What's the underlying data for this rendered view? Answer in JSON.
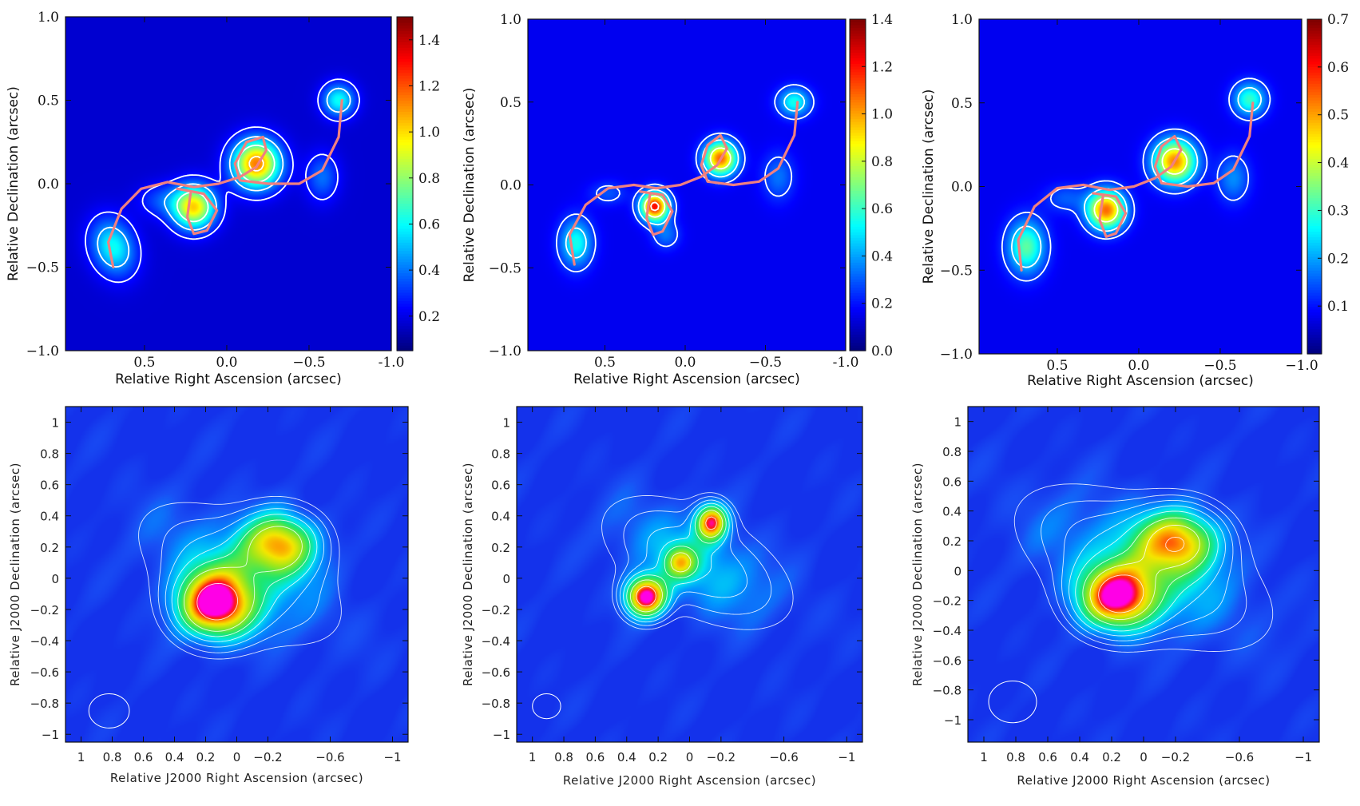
{
  "chart_data": [
    {
      "type": "heatmap",
      "panel": "top-left",
      "xlabel": "Relative Right Ascension (arcsec)",
      "ylabel": "Relative Declination (arcsec)",
      "xlim": [
        0.98,
        -1.0
      ],
      "ylim": [
        -1.0,
        1.0
      ],
      "xticks": [
        0.5,
        0.0,
        -0.5,
        -1.0
      ],
      "xtick_labels": [
        "0.5",
        "0.0",
        "−0.5",
        "-1.0"
      ],
      "yticks": [
        -1.0,
        -0.5,
        0.0,
        0.5,
        1.0
      ],
      "ytick_labels": [
        "−1.0",
        "−0.5",
        "0.0",
        "0.5",
        "1.0"
      ],
      "colormap": "jet",
      "background": "#00008b",
      "colorbar": {
        "range": [
          0.05,
          1.5
        ],
        "ticks": [
          0.2,
          0.4,
          0.6,
          0.8,
          1.0,
          1.2,
          1.4
        ],
        "tick_labels": [
          "0.2",
          "0.4",
          "0.6",
          "0.8",
          "1.0",
          "1.2",
          "1.4"
        ]
      },
      "sources": [
        {
          "x": 0.69,
          "y": -0.38,
          "sx": 0.09,
          "sy": 0.12,
          "peak": 0.5,
          "rot": -20
        },
        {
          "x": 0.2,
          "y": -0.14,
          "sx": 0.09,
          "sy": 0.09,
          "peak": 0.95,
          "rot": 0
        },
        {
          "x": -0.18,
          "y": 0.12,
          "sx": 0.1,
          "sy": 0.1,
          "peak": 1.1,
          "rot": 0
        },
        {
          "x": -0.68,
          "y": 0.5,
          "sx": 0.07,
          "sy": 0.07,
          "peak": 0.5,
          "rot": 0
        },
        {
          "x": -0.58,
          "y": 0.04,
          "sx": 0.07,
          "sy": 0.1,
          "peak": 0.25,
          "rot": 0
        },
        {
          "x": 0.4,
          "y": -0.1,
          "sx": 0.1,
          "sy": 0.07,
          "peak": 0.18,
          "rot": 0
        }
      ],
      "contour_levels": [
        0.1,
        0.3,
        0.6,
        1.0
      ],
      "curve": [
        [
          0.69,
          -0.5
        ],
        [
          0.72,
          -0.35
        ],
        [
          0.64,
          -0.15
        ],
        [
          0.52,
          -0.03
        ],
        [
          0.36,
          0.01
        ],
        [
          0.2,
          -0.02
        ],
        [
          0.05,
          0.0
        ],
        [
          -0.08,
          0.04
        ],
        [
          -0.18,
          0.1
        ],
        [
          -0.24,
          0.2
        ],
        [
          -0.22,
          0.28
        ],
        [
          -0.12,
          0.25
        ],
        [
          -0.05,
          0.12
        ],
        [
          -0.08,
          0.02
        ],
        [
          -0.25,
          0.0
        ],
        [
          -0.44,
          0.0
        ],
        [
          -0.58,
          0.08
        ],
        [
          -0.68,
          0.28
        ],
        [
          -0.7,
          0.5
        ]
      ],
      "curve_loop": [
        [
          0.3,
          -0.03
        ],
        [
          0.14,
          -0.06
        ],
        [
          0.06,
          -0.16
        ],
        [
          0.12,
          -0.28
        ],
        [
          0.2,
          -0.3
        ],
        [
          0.24,
          -0.2
        ],
        [
          0.22,
          -0.06
        ]
      ]
    },
    {
      "type": "heatmap",
      "panel": "top-middle",
      "xlabel": "Relative Right Ascension (arcsec)",
      "ylabel": "Relative Declination (arcsec)",
      "xlim": [
        0.98,
        -1.0
      ],
      "ylim": [
        -1.0,
        1.0
      ],
      "xticks": [
        0.5,
        0.0,
        -0.5,
        -1.0
      ],
      "xtick_labels": [
        "0.5",
        "0.0",
        "−0.5",
        "-1.0"
      ],
      "yticks": [
        -1.0,
        -0.5,
        0.0,
        0.5,
        1.0
      ],
      "ytick_labels": [
        "−1.0",
        "−0.5",
        "0.0",
        "0.5",
        "1.0"
      ],
      "colormap": "jet",
      "background": "#00008b",
      "colorbar": {
        "range": [
          0.0,
          1.4
        ],
        "ticks": [
          0.0,
          0.2,
          0.4,
          0.6,
          0.8,
          1.0,
          1.2,
          1.4
        ],
        "tick_labels": [
          "0.0",
          "0.2",
          "0.4",
          "0.6",
          "0.8",
          "1.0",
          "1.2",
          "1.4"
        ]
      },
      "sources": [
        {
          "x": 0.68,
          "y": -0.35,
          "sx": 0.07,
          "sy": 0.1,
          "peak": 0.45,
          "rot": 0
        },
        {
          "x": 0.19,
          "y": -0.13,
          "sx": 0.06,
          "sy": 0.06,
          "peak": 1.2,
          "rot": 0
        },
        {
          "x": -0.22,
          "y": 0.16,
          "sx": 0.07,
          "sy": 0.07,
          "peak": 1.05,
          "rot": 0
        },
        {
          "x": -0.68,
          "y": 0.5,
          "sx": 0.07,
          "sy": 0.06,
          "peak": 0.45,
          "rot": 0
        },
        {
          "x": -0.58,
          "y": 0.05,
          "sx": 0.07,
          "sy": 0.1,
          "peak": 0.2,
          "rot": 0
        },
        {
          "x": 0.48,
          "y": -0.05,
          "sx": 0.08,
          "sy": 0.05,
          "peak": 0.15,
          "rot": 0
        },
        {
          "x": 0.12,
          "y": -0.3,
          "sx": 0.06,
          "sy": 0.06,
          "peak": 0.2,
          "rot": 0
        }
      ],
      "contour_levels": [
        0.1,
        0.3,
        0.7,
        1.1
      ],
      "curve": [
        [
          0.69,
          -0.48
        ],
        [
          0.72,
          -0.3
        ],
        [
          0.62,
          -0.12
        ],
        [
          0.48,
          -0.02
        ],
        [
          0.32,
          0.0
        ],
        [
          0.18,
          -0.02
        ],
        [
          0.03,
          0.0
        ],
        [
          -0.1,
          0.05
        ],
        [
          -0.2,
          0.12
        ],
        [
          -0.26,
          0.22
        ],
        [
          -0.22,
          0.3
        ],
        [
          -0.14,
          0.24
        ],
        [
          -0.1,
          0.12
        ],
        [
          -0.14,
          0.02
        ],
        [
          -0.3,
          0.0
        ],
        [
          -0.46,
          0.02
        ],
        [
          -0.58,
          0.1
        ],
        [
          -0.68,
          0.3
        ],
        [
          -0.7,
          0.5
        ]
      ],
      "curve_loop": [
        [
          0.28,
          -0.04
        ],
        [
          0.14,
          -0.06
        ],
        [
          0.08,
          -0.16
        ],
        [
          0.14,
          -0.28
        ],
        [
          0.2,
          -0.3
        ],
        [
          0.24,
          -0.2
        ],
        [
          0.22,
          -0.06
        ]
      ]
    },
    {
      "type": "heatmap",
      "panel": "top-right",
      "xlabel": "Relative Right Ascension (arcsec)",
      "ylabel": "Relative Declination (arcsec)",
      "xlim": [
        0.98,
        -1.0
      ],
      "ylim": [
        -1.0,
        1.0
      ],
      "xticks": [
        0.5,
        0.0,
        -0.5,
        -1.0
      ],
      "xtick_labels": [
        "0.5",
        "0.0",
        "−0.5",
        "−1.0"
      ],
      "yticks": [
        -1.0,
        -0.5,
        0.0,
        0.5,
        1.0
      ],
      "ytick_labels": [
        "−1.0",
        "−0.5",
        "0.0",
        "0.5",
        "1.0"
      ],
      "colormap": "jet",
      "background": "#00008b",
      "colorbar": {
        "range": [
          0.0,
          0.7
        ],
        "ticks": [
          0.1,
          0.2,
          0.3,
          0.4,
          0.5,
          0.6,
          0.7
        ],
        "tick_labels": [
          "0.1",
          "0.2",
          "0.3",
          "0.4",
          "0.5",
          "0.6",
          "0.7"
        ]
      },
      "sources": [
        {
          "x": 0.69,
          "y": -0.36,
          "sx": 0.08,
          "sy": 0.11,
          "peak": 0.28,
          "rot": 0
        },
        {
          "x": 0.2,
          "y": -0.14,
          "sx": 0.08,
          "sy": 0.08,
          "peak": 0.52,
          "rot": 0
        },
        {
          "x": -0.22,
          "y": 0.15,
          "sx": 0.09,
          "sy": 0.09,
          "peak": 0.5,
          "rot": 0
        },
        {
          "x": -0.68,
          "y": 0.52,
          "sx": 0.07,
          "sy": 0.07,
          "peak": 0.25,
          "rot": 0
        },
        {
          "x": -0.58,
          "y": 0.05,
          "sx": 0.07,
          "sy": 0.1,
          "peak": 0.12,
          "rot": 0
        },
        {
          "x": 0.45,
          "y": -0.07,
          "sx": 0.09,
          "sy": 0.06,
          "peak": 0.08,
          "rot": 0
        }
      ],
      "contour_levels": [
        0.05,
        0.15,
        0.35,
        0.55
      ],
      "curve": [
        [
          0.72,
          -0.5
        ],
        [
          0.74,
          -0.32
        ],
        [
          0.64,
          -0.12
        ],
        [
          0.5,
          -0.01
        ],
        [
          0.34,
          0.01
        ],
        [
          0.18,
          -0.02
        ],
        [
          0.03,
          0.0
        ],
        [
          -0.1,
          0.05
        ],
        [
          -0.2,
          0.12
        ],
        [
          -0.26,
          0.22
        ],
        [
          -0.22,
          0.3
        ],
        [
          -0.14,
          0.24
        ],
        [
          -0.1,
          0.12
        ],
        [
          -0.14,
          0.02
        ],
        [
          -0.3,
          0.0
        ],
        [
          -0.46,
          0.02
        ],
        [
          -0.58,
          0.1
        ],
        [
          -0.68,
          0.3
        ],
        [
          -0.7,
          0.5
        ]
      ],
      "curve_loop": [
        [
          0.28,
          -0.04
        ],
        [
          0.14,
          -0.06
        ],
        [
          0.08,
          -0.16
        ],
        [
          0.14,
          -0.28
        ],
        [
          0.2,
          -0.3
        ],
        [
          0.24,
          -0.2
        ],
        [
          0.22,
          -0.06
        ]
      ]
    },
    {
      "type": "heatmap",
      "panel": "bottom-left",
      "xlabel": "Relative J2000 Right Ascension (arcsec)",
      "ylabel": "Relative J2000 Declination (arcsec)",
      "xlim": [
        1.1,
        -1.1
      ],
      "ylim": [
        -1.05,
        1.1
      ],
      "xticks": [
        1,
        0.8,
        0.6,
        0.4,
        0.2,
        0,
        -0.2,
        -0.6,
        -1
      ],
      "xtick_labels": [
        "1",
        "0.8",
        "0.6",
        "0.4",
        "0.2",
        "0",
        "−0.2",
        "−0.6",
        "−1"
      ],
      "yticks": [
        -1,
        -0.8,
        -0.6,
        -0.4,
        -0.2,
        0,
        0.2,
        0.4,
        0.6,
        0.8,
        1
      ],
      "ytick_labels": [
        "−1",
        "−0.8",
        "−0.6",
        "−0.4",
        "−0.2",
        "0",
        "0.2",
        "0.4",
        "0.6",
        "0.8",
        "1"
      ],
      "colormap": "rainbow-blue-background",
      "sources": [
        {
          "x": 0.14,
          "y": -0.17,
          "sx": 0.17,
          "sy": 0.15,
          "peak": 1.0,
          "rot": 0
        },
        {
          "x": -0.28,
          "y": 0.22,
          "sx": 0.17,
          "sy": 0.14,
          "peak": 0.72,
          "rot": 0
        },
        {
          "x": -0.02,
          "y": 0.03,
          "sx": 0.45,
          "sy": 0.22,
          "peak": 0.28,
          "rot": 28
        }
      ],
      "contour_levels": [
        0.08,
        0.14,
        0.22,
        0.32,
        0.44,
        0.58,
        0.9
      ],
      "beam": {
        "x": 0.82,
        "y": -0.85,
        "rx": 0.13,
        "ry": 0.11
      }
    },
    {
      "type": "heatmap",
      "panel": "bottom-middle",
      "xlabel": "Relative J2000 Right Ascension (arcsec)",
      "ylabel": "Relative J2000 Declination (arcsec)",
      "xlim": [
        1.1,
        -1.1
      ],
      "ylim": [
        -1.05,
        1.1
      ],
      "xticks": [
        1,
        0.8,
        0.6,
        0.4,
        0.2,
        0,
        -0.2,
        -0.6,
        -1
      ],
      "xtick_labels": [
        "1",
        "0.8",
        "0.6",
        "0.4",
        "0.2",
        "0",
        "−0.2",
        "−0.6",
        "−1"
      ],
      "yticks": [
        -1,
        -0.8,
        -0.6,
        -0.4,
        -0.2,
        0,
        0.2,
        0.4,
        0.6,
        0.8,
        1
      ],
      "ytick_labels": [
        "−1",
        "−0.8",
        "−0.6",
        "−0.4",
        "−0.2",
        "0",
        "0.2",
        "0.4",
        "0.6",
        "0.8",
        "1"
      ],
      "colormap": "rainbow-blue-background",
      "sources": [
        {
          "x": 0.28,
          "y": -0.12,
          "sx": 0.09,
          "sy": 0.09,
          "peak": 1.0,
          "rot": 0
        },
        {
          "x": -0.14,
          "y": 0.36,
          "sx": 0.07,
          "sy": 0.08,
          "peak": 0.82,
          "rot": 0
        },
        {
          "x": 0.06,
          "y": 0.1,
          "sx": 0.07,
          "sy": 0.07,
          "peak": 0.45,
          "rot": 0
        },
        {
          "x": -0.05,
          "y": 0.1,
          "sx": 0.4,
          "sy": 0.2,
          "peak": 0.32,
          "rot": 28
        }
      ],
      "contour_levels": [
        0.08,
        0.14,
        0.22,
        0.32,
        0.44,
        0.6,
        0.85
      ],
      "beam": {
        "x": 0.91,
        "y": -0.82,
        "rx": 0.09,
        "ry": 0.08
      }
    },
    {
      "type": "heatmap",
      "panel": "bottom-right",
      "xlabel": "Relative J2000 Right Ascension (arcsec)",
      "ylabel": "Relative J2000 Declination (arcsec)",
      "xlim": [
        1.1,
        -1.1
      ],
      "ylim": [
        -1.15,
        1.1
      ],
      "xticks": [
        1,
        0.8,
        0.6,
        0.4,
        0.2,
        0,
        -0.2,
        -0.6,
        -1
      ],
      "xtick_labels": [
        "1",
        "0.8",
        "0.6",
        "0.4",
        "0.2",
        "0",
        "−0.2",
        "−0.6",
        "−1"
      ],
      "yticks": [
        -1,
        -0.8,
        -0.6,
        -0.4,
        -0.2,
        0,
        0.2,
        0.4,
        0.6,
        0.8,
        1
      ],
      "ytick_labels": [
        "−1",
        "−0.8",
        "−0.6",
        "−0.4",
        "−0.2",
        "0",
        "0.2",
        "0.4",
        "0.6",
        "0.8",
        "1"
      ],
      "colormap": "rainbow-blue-background",
      "sources": [
        {
          "x": 0.16,
          "y": -0.18,
          "sx": 0.17,
          "sy": 0.15,
          "peak": 0.92,
          "rot": 0
        },
        {
          "x": -0.22,
          "y": 0.2,
          "sx": 0.18,
          "sy": 0.15,
          "peak": 0.7,
          "rot": 0
        },
        {
          "x": 0.0,
          "y": 0.02,
          "sx": 0.52,
          "sy": 0.25,
          "peak": 0.3,
          "rot": 28
        }
      ],
      "contour_levels": [
        0.07,
        0.12,
        0.18,
        0.26,
        0.36,
        0.5,
        0.66,
        0.85
      ],
      "beam": {
        "x": 0.82,
        "y": -0.88,
        "rx": 0.15,
        "ry": 0.14
      }
    }
  ]
}
